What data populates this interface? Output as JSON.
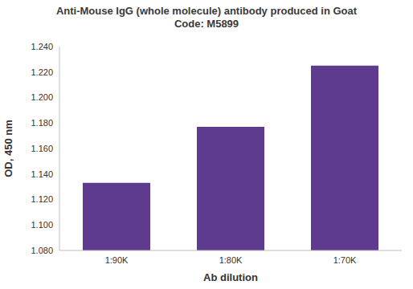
{
  "chart_data": {
    "type": "bar",
    "title": "Anti-Mouse IgG (whole molecule) antibody produced in Goat",
    "subtitle": "Code: M5899",
    "x_label": "Ab dilution",
    "y_label": "OD, 450 nm",
    "categories": [
      "1:90K",
      "1:80K",
      "1:70K"
    ],
    "values": [
      1.133,
      1.177,
      1.225
    ],
    "color": "#5f3b8f",
    "ylim": [
      1.08,
      1.24
    ],
    "yticks": [
      {
        "value": 1.08,
        "label": "1.080"
      },
      {
        "value": 1.1,
        "label": "1.100"
      },
      {
        "value": 1.12,
        "label": "1.120"
      },
      {
        "value": 1.14,
        "label": "1.140"
      },
      {
        "value": 1.16,
        "label": "1.160"
      },
      {
        "value": 1.18,
        "label": "1.180"
      },
      {
        "value": 1.2,
        "label": "1.200"
      },
      {
        "value": 1.22,
        "label": "1.220"
      },
      {
        "value": 1.24,
        "label": "1.240"
      }
    ],
    "grid": false
  }
}
